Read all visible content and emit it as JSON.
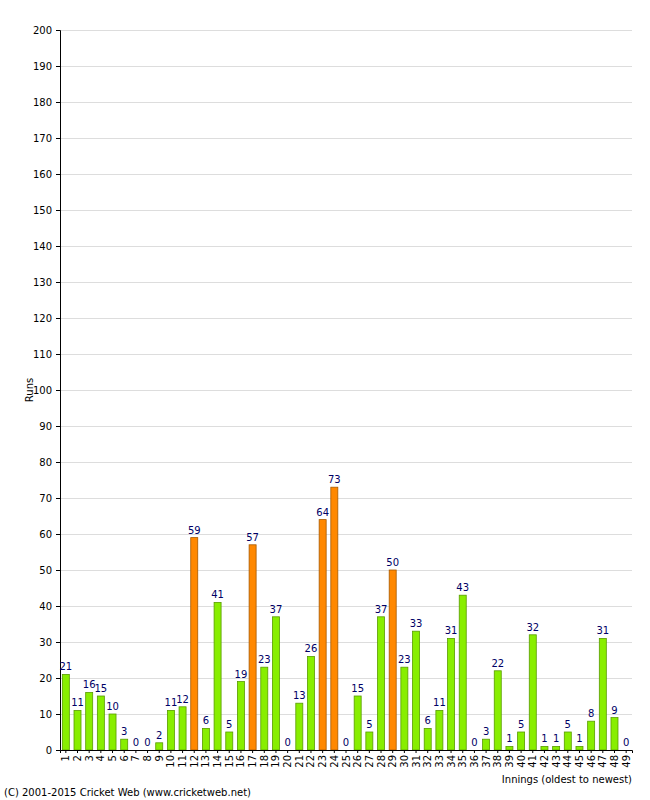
{
  "chart_data": {
    "type": "bar",
    "categories": [
      "1",
      "2",
      "3",
      "4",
      "5",
      "6",
      "7",
      "8",
      "9",
      "10",
      "11",
      "12",
      "13",
      "14",
      "15",
      "16",
      "17",
      "18",
      "19",
      "20",
      "21",
      "22",
      "23",
      "24",
      "25",
      "26",
      "27",
      "28",
      "29",
      "30",
      "31",
      "32",
      "33",
      "34",
      "35",
      "36",
      "37",
      "38",
      "39",
      "40",
      "41",
      "42",
      "43",
      "44",
      "45",
      "46",
      "47",
      "48",
      "49"
    ],
    "values": [
      21,
      11,
      16,
      15,
      10,
      3,
      0,
      0,
      2,
      11,
      12,
      59,
      6,
      41,
      5,
      19,
      57,
      23,
      37,
      0,
      13,
      26,
      64,
      73,
      0,
      15,
      5,
      37,
      50,
      23,
      33,
      6,
      11,
      31,
      43,
      0,
      3,
      22,
      1,
      5,
      32,
      1,
      1,
      5,
      1,
      8,
      31,
      9,
      0
    ],
    "colors": [
      "#88ee00",
      "#88ee00",
      "#88ee00",
      "#88ee00",
      "#88ee00",
      "#88ee00",
      "#88ee00",
      "#88ee00",
      "#88ee00",
      "#88ee00",
      "#88ee00",
      "#ff8800",
      "#88ee00",
      "#88ee00",
      "#88ee00",
      "#88ee00",
      "#ff8800",
      "#88ee00",
      "#88ee00",
      "#88ee00",
      "#88ee00",
      "#88ee00",
      "#ff8800",
      "#ff8800",
      "#88ee00",
      "#88ee00",
      "#88ee00",
      "#88ee00",
      "#ff8800",
      "#88ee00",
      "#88ee00",
      "#88ee00",
      "#88ee00",
      "#88ee00",
      "#88ee00",
      "#88ee00",
      "#88ee00",
      "#88ee00",
      "#88ee00",
      "#88ee00",
      "#88ee00",
      "#88ee00",
      "#88ee00",
      "#88ee00",
      "#88ee00",
      "#88ee00",
      "#88ee00",
      "#88ee00",
      "#88ee00"
    ],
    "ylim": [
      0,
      200
    ],
    "yticks": [
      0,
      10,
      20,
      30,
      40,
      50,
      60,
      70,
      80,
      90,
      100,
      110,
      120,
      130,
      140,
      150,
      160,
      170,
      180,
      190,
      200
    ],
    "grid": true,
    "data_labels": true,
    "y_label": "Runs",
    "x_label": "Innings (oldest to newest)",
    "annotations": [
      "(C) 2001-2015 Cricket Web (www.cricketweb.net)"
    ]
  }
}
